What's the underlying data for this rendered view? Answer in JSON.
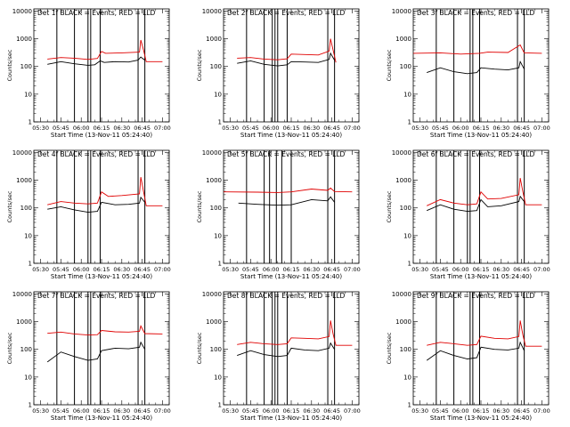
{
  "colors": {
    "events": "#000000",
    "lld": "#e00000",
    "frame": "#000000",
    "background": "#ffffff"
  },
  "common": {
    "xlabel": "Start Time (13-Nov-11 05:24:40)",
    "ylabel": "Counts/sec",
    "x_ticks": [
      "05:30",
      "05:45",
      "06:00",
      "06:15",
      "06:30",
      "06:45",
      "07:00"
    ],
    "y_ticks": [
      "1",
      "10",
      "100",
      "1000",
      "10000"
    ]
  },
  "chart_data": [
    {
      "type": "line",
      "title": "Det 1f BLACK = Events, RED = LLD",
      "xlim": [
        "05:25",
        "07:05"
      ],
      "ylim": [
        1,
        12000
      ],
      "y_scale": "log",
      "series": [
        {
          "points": [
            [
              "05:35",
              120
            ],
            [
              "05:45",
              150
            ],
            [
              "05:55",
              125
            ],
            [
              "06:05",
              110
            ],
            [
              "06:10",
              115
            ],
            [
              "06:14",
              160
            ],
            [
              "06:17",
              140
            ],
            [
              "06:25",
              150
            ],
            [
              "06:35",
              145
            ],
            [
              "06:42",
              170
            ],
            [
              "06:44",
              220
            ],
            [
              "06:47",
              170
            ]
          ]
        },
        {
          "points": [
            [
              "05:35",
              185
            ],
            [
              "05:45",
              210
            ],
            [
              "05:55",
              200
            ],
            [
              "06:05",
              180
            ],
            [
              "06:12",
              195
            ],
            [
              "06:15",
              350
            ],
            [
              "06:18",
              300
            ],
            [
              "06:30",
              310
            ],
            [
              "06:43",
              330
            ],
            [
              "06:44",
              900
            ],
            [
              "06:46",
              400
            ],
            [
              "06:48",
              150
            ],
            [
              "07:00",
              150
            ]
          ]
        }
      ],
      "vlines": [
        "05:42",
        "05:55",
        "06:05",
        "06:07",
        "06:14",
        "06:42",
        "06:47"
      ]
    },
    {
      "type": "line",
      "title": "Det 2f BLACK = Events, RED = LLD",
      "xlim": [
        "05:25",
        "07:05"
      ],
      "ylim": [
        1,
        12000
      ],
      "y_scale": "log",
      "series": [
        {
          "points": [
            [
              "05:35",
              130
            ],
            [
              "05:45",
              160
            ],
            [
              "05:55",
              120
            ],
            [
              "06:05",
              105
            ],
            [
              "06:12",
              115
            ],
            [
              "06:15",
              150
            ],
            [
              "06:25",
              145
            ],
            [
              "06:35",
              140
            ],
            [
              "06:43",
              180
            ],
            [
              "06:44",
              300
            ],
            [
              "06:47",
              170
            ]
          ]
        },
        {
          "points": [
            [
              "05:35",
              200
            ],
            [
              "05:45",
              210
            ],
            [
              "05:55",
              185
            ],
            [
              "06:05",
              175
            ],
            [
              "06:12",
              190
            ],
            [
              "06:15",
              280
            ],
            [
              "06:25",
              270
            ],
            [
              "06:35",
              260
            ],
            [
              "06:43",
              360
            ],
            [
              "06:44",
              1000
            ],
            [
              "06:46",
              380
            ],
            [
              "06:48",
              140
            ]
          ]
        }
      ],
      "vlines": [
        "05:42",
        "05:55",
        "06:01",
        "06:03",
        "06:05",
        "06:12",
        "06:42",
        "06:47"
      ]
    },
    {
      "type": "line",
      "title": "Det 3f BLACK = Events, RED = LLD",
      "xlim": [
        "05:25",
        "07:05"
      ],
      "ylim": [
        1,
        12000
      ],
      "y_scale": "log",
      "series": [
        {
          "points": [
            [
              "05:35",
              60
            ],
            [
              "05:45",
              90
            ],
            [
              "05:55",
              65
            ],
            [
              "06:05",
              55
            ],
            [
              "06:12",
              60
            ],
            [
              "06:15",
              90
            ],
            [
              "06:25",
              80
            ],
            [
              "06:35",
              75
            ],
            [
              "06:43",
              90
            ],
            [
              "06:44",
              150
            ],
            [
              "06:47",
              80
            ]
          ]
        },
        {
          "points": [
            [
              "05:25",
              300
            ],
            [
              "05:45",
              310
            ],
            [
              "06:00",
              280
            ],
            [
              "06:14",
              300
            ],
            [
              "06:20",
              330
            ],
            [
              "06:35",
              320
            ],
            [
              "06:44",
              600
            ],
            [
              "06:47",
              310
            ],
            [
              "07:00",
              300
            ]
          ]
        }
      ],
      "vlines": [
        "05:42",
        "05:55",
        "06:07",
        "06:09",
        "06:14",
        "06:42",
        "06:47"
      ]
    },
    {
      "type": "line",
      "title": "Det 4f BLACK = Events, RED = LLD",
      "xlim": [
        "05:25",
        "07:05"
      ],
      "ylim": [
        1,
        12000
      ],
      "y_scale": "log",
      "series": [
        {
          "points": [
            [
              "05:35",
              90
            ],
            [
              "05:45",
              110
            ],
            [
              "05:55",
              85
            ],
            [
              "06:05",
              70
            ],
            [
              "06:12",
              75
            ],
            [
              "06:15",
              160
            ],
            [
              "06:25",
              130
            ],
            [
              "06:35",
              135
            ],
            [
              "06:43",
              150
            ],
            [
              "06:44",
              240
            ],
            [
              "06:47",
              160
            ]
          ]
        },
        {
          "points": [
            [
              "05:35",
              130
            ],
            [
              "05:45",
              170
            ],
            [
              "05:55",
              150
            ],
            [
              "06:05",
              140
            ],
            [
              "06:12",
              150
            ],
            [
              "06:15",
              380
            ],
            [
              "06:20",
              260
            ],
            [
              "06:30",
              280
            ],
            [
              "06:43",
              320
            ],
            [
              "06:44",
              1300
            ],
            [
              "06:46",
              400
            ],
            [
              "06:48",
              120
            ],
            [
              "07:00",
              120
            ]
          ]
        }
      ],
      "vlines": [
        "05:42",
        "05:55",
        "06:05",
        "06:07",
        "06:14",
        "06:42",
        "06:47"
      ]
    },
    {
      "type": "line",
      "title": "Det 5f BLACK = Events, RED = LLD",
      "xlim": [
        "05:25",
        "07:05"
      ],
      "ylim": [
        1,
        12000
      ],
      "y_scale": "log",
      "series": [
        {
          "points": [
            [
              "05:36",
              150
            ],
            [
              "05:50",
              135
            ],
            [
              "06:05",
              125
            ],
            [
              "06:15",
              130
            ],
            [
              "06:30",
              200
            ],
            [
              "06:42",
              180
            ],
            [
              "06:44",
              250
            ],
            [
              "06:47",
              160
            ]
          ]
        },
        {
          "points": [
            [
              "05:25",
              380
            ],
            [
              "05:50",
              370
            ],
            [
              "06:05",
              360
            ],
            [
              "06:15",
              380
            ],
            [
              "06:30",
              480
            ],
            [
              "06:42",
              430
            ],
            [
              "06:44",
              520
            ],
            [
              "06:47",
              390
            ],
            [
              "07:00",
              380
            ]
          ]
        }
      ],
      "vlines": [
        "05:42",
        "05:55",
        "05:59",
        "06:04",
        "06:08",
        "06:15",
        "06:42",
        "06:47"
      ]
    },
    {
      "type": "line",
      "title": "Det 6f BLACK = Events, RED = LLD",
      "xlim": [
        "05:25",
        "07:05"
      ],
      "ylim": [
        1,
        12000
      ],
      "y_scale": "log",
      "series": [
        {
          "points": [
            [
              "05:35",
              80
            ],
            [
              "05:45",
              130
            ],
            [
              "05:55",
              90
            ],
            [
              "06:05",
              75
            ],
            [
              "06:12",
              80
            ],
            [
              "06:15",
              200
            ],
            [
              "06:20",
              110
            ],
            [
              "06:30",
              120
            ],
            [
              "06:43",
              170
            ],
            [
              "06:44",
              260
            ],
            [
              "06:47",
              170
            ]
          ]
        },
        {
          "points": [
            [
              "05:35",
              120
            ],
            [
              "05:45",
              200
            ],
            [
              "05:55",
              150
            ],
            [
              "06:05",
              130
            ],
            [
              "06:12",
              140
            ],
            [
              "06:15",
              380
            ],
            [
              "06:20",
              210
            ],
            [
              "06:30",
              220
            ],
            [
              "06:43",
              300
            ],
            [
              "06:44",
              1200
            ],
            [
              "06:46",
              380
            ],
            [
              "06:48",
              130
            ],
            [
              "07:00",
              130
            ]
          ]
        }
      ],
      "vlines": [
        "05:42",
        "05:55",
        "06:05",
        "06:07",
        "06:14",
        "06:42",
        "06:47"
      ]
    },
    {
      "type": "line",
      "title": "Det 7f BLACK = Events, RED = LLD",
      "xlim": [
        "05:25",
        "07:05"
      ],
      "ylim": [
        1,
        12000
      ],
      "y_scale": "log",
      "series": [
        {
          "points": [
            [
              "05:35",
              35
            ],
            [
              "05:45",
              80
            ],
            [
              "05:55",
              55
            ],
            [
              "06:05",
              40
            ],
            [
              "06:12",
              45
            ],
            [
              "06:15",
              90
            ],
            [
              "06:25",
              110
            ],
            [
              "06:35",
              105
            ],
            [
              "06:43",
              120
            ],
            [
              "06:44",
              180
            ],
            [
              "06:47",
              100
            ]
          ]
        },
        {
          "points": [
            [
              "05:35",
              380
            ],
            [
              "05:45",
              420
            ],
            [
              "05:55",
              360
            ],
            [
              "06:05",
              330
            ],
            [
              "06:12",
              340
            ],
            [
              "06:15",
              480
            ],
            [
              "06:25",
              430
            ],
            [
              "06:35",
              420
            ],
            [
              "06:43",
              450
            ],
            [
              "06:44",
              700
            ],
            [
              "06:47",
              370
            ],
            [
              "07:00",
              360
            ]
          ]
        }
      ],
      "vlines": [
        "05:42",
        "05:55",
        "06:05",
        "06:07",
        "06:14",
        "06:42",
        "06:47"
      ]
    },
    {
      "type": "line",
      "title": "Det 8f BLACK = Events, RED = LLD",
      "xlim": [
        "05:25",
        "07:05"
      ],
      "ylim": [
        1,
        12000
      ],
      "y_scale": "log",
      "series": [
        {
          "points": [
            [
              "05:35",
              60
            ],
            [
              "05:45",
              90
            ],
            [
              "05:55",
              65
            ],
            [
              "06:05",
              55
            ],
            [
              "06:12",
              60
            ],
            [
              "06:15",
              110
            ],
            [
              "06:25",
              95
            ],
            [
              "06:35",
              90
            ],
            [
              "06:43",
              110
            ],
            [
              "06:44",
              170
            ],
            [
              "06:47",
              100
            ]
          ]
        },
        {
          "points": [
            [
              "05:35",
              150
            ],
            [
              "05:45",
              180
            ],
            [
              "05:55",
              160
            ],
            [
              "06:05",
              150
            ],
            [
              "06:12",
              160
            ],
            [
              "06:15",
              260
            ],
            [
              "06:25",
              250
            ],
            [
              "06:35",
              240
            ],
            [
              "06:43",
              290
            ],
            [
              "06:44",
              1100
            ],
            [
              "06:46",
              350
            ],
            [
              "06:48",
              140
            ],
            [
              "07:00",
              140
            ]
          ]
        }
      ],
      "vlines": [
        "05:42",
        "05:55",
        "06:01",
        "06:03",
        "06:05",
        "06:12",
        "06:42",
        "06:47"
      ]
    },
    {
      "type": "line",
      "title": "Det 9f BLACK = Events, RED = LLD",
      "xlim": [
        "05:25",
        "07:05"
      ],
      "ylim": [
        1,
        12000
      ],
      "y_scale": "log",
      "series": [
        {
          "points": [
            [
              "05:35",
              40
            ],
            [
              "05:45",
              90
            ],
            [
              "05:55",
              60
            ],
            [
              "06:05",
              45
            ],
            [
              "06:12",
              50
            ],
            [
              "06:15",
              120
            ],
            [
              "06:25",
              100
            ],
            [
              "06:35",
              95
            ],
            [
              "06:43",
              110
            ],
            [
              "06:44",
              180
            ],
            [
              "06:47",
              90
            ]
          ]
        },
        {
          "points": [
            [
              "05:35",
              140
            ],
            [
              "05:45",
              180
            ],
            [
              "05:55",
              160
            ],
            [
              "06:05",
              140
            ],
            [
              "06:12",
              150
            ],
            [
              "06:15",
              300
            ],
            [
              "06:25",
              250
            ],
            [
              "06:35",
              240
            ],
            [
              "06:43",
              290
            ],
            [
              "06:44",
              1100
            ],
            [
              "06:46",
              330
            ],
            [
              "06:48",
              130
            ],
            [
              "07:00",
              130
            ]
          ]
        }
      ],
      "vlines": [
        "05:42",
        "05:55",
        "06:07",
        "06:09",
        "06:14",
        "06:42",
        "06:47"
      ]
    }
  ]
}
